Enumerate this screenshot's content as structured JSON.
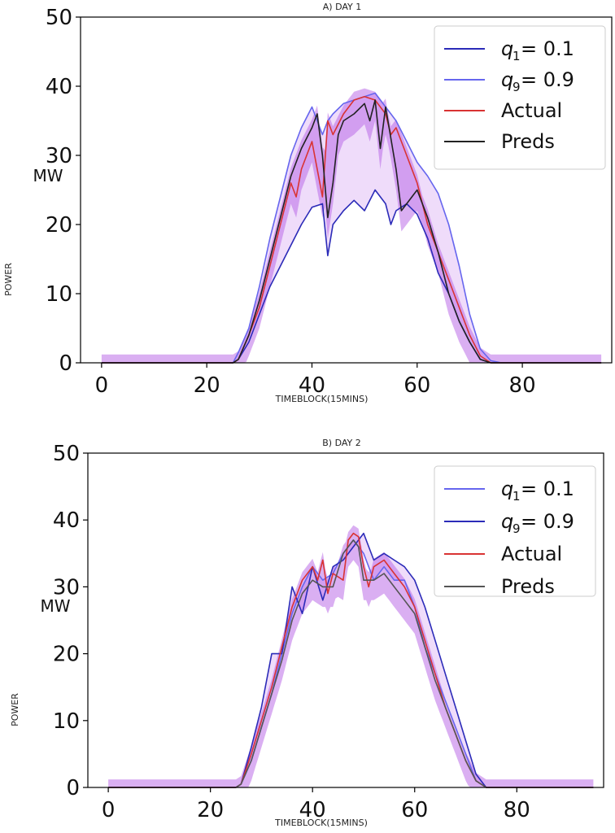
{
  "chart_data": [
    {
      "type": "line",
      "title": "A) DAY 1",
      "xlabel": "TIMEBLOCK(15MINS)",
      "ylabel": "POWER",
      "yunit": "MW",
      "xlim": [
        -4,
        97
      ],
      "ylim": [
        0,
        50
      ],
      "xticks": [
        0,
        20,
        40,
        60,
        80
      ],
      "yticks": [
        0,
        10,
        20,
        30,
        40,
        50
      ],
      "legend_position": "top-right",
      "band": {
        "name": "quantile spread",
        "color": "#b55fe6"
      },
      "series": [
        {
          "name": "q1",
          "label": "q",
          "sub": "1",
          "value_text": " = 0.1",
          "color": "#2b2bb8",
          "x": [
            0,
            24,
            25,
            26,
            28,
            30,
            32,
            34,
            36,
            38,
            40,
            42,
            43,
            44,
            46,
            48,
            50,
            52,
            54,
            55,
            56,
            58,
            60,
            62,
            64,
            66,
            68,
            70,
            72,
            74,
            76,
            80,
            95
          ],
          "values": [
            0,
            0,
            0,
            0.5,
            3,
            7,
            11,
            14,
            17,
            20,
            22.5,
            23,
            15.5,
            20,
            22,
            23.5,
            22,
            25,
            23,
            20,
            22,
            23,
            21.5,
            18,
            13,
            10,
            6,
            3,
            0.5,
            0,
            0,
            0,
            0
          ]
        },
        {
          "name": "q9",
          "label": "q",
          "sub": "9",
          "value_text": " = 0.9",
          "color": "#6666ee",
          "x": [
            0,
            24,
            25,
            26,
            28,
            30,
            32,
            34,
            36,
            38,
            40,
            42,
            43,
            44,
            46,
            48,
            50,
            52,
            54,
            55,
            56,
            58,
            60,
            62,
            64,
            66,
            68,
            70,
            72,
            74,
            76,
            80,
            95
          ],
          "values": [
            0,
            0,
            0,
            1.5,
            5,
            11,
            18,
            24,
            30,
            34,
            37,
            33,
            35,
            36,
            37.5,
            38,
            38.5,
            39,
            37,
            36,
            35,
            32,
            29,
            27,
            24.5,
            20,
            14,
            7,
            2,
            0.3,
            0,
            0,
            0
          ]
        },
        {
          "name": "Actual",
          "label": "Actual",
          "color": "#d93333",
          "x": [
            0,
            24,
            25,
            26,
            28,
            30,
            32,
            34,
            36,
            37,
            38,
            40,
            42,
            43,
            44,
            46,
            48,
            50,
            52,
            54,
            55,
            56,
            58,
            60,
            62,
            64,
            66,
            68,
            70,
            72,
            74,
            76,
            80,
            95
          ],
          "values": [
            0,
            0,
            0,
            0.5,
            4,
            8,
            14,
            20,
            26,
            24,
            28,
            32,
            24,
            35,
            33,
            36,
            38,
            38.5,
            38,
            36,
            33,
            34,
            30,
            26,
            20,
            16,
            12,
            8,
            4,
            1,
            0,
            0,
            0,
            0
          ]
        },
        {
          "name": "Preds",
          "label": "Preds",
          "color": "#222222",
          "x": [
            0,
            24,
            25,
            26,
            28,
            30,
            32,
            34,
            36,
            38,
            40,
            41,
            42,
            43,
            44,
            45,
            46,
            48,
            50,
            51,
            52,
            53,
            54,
            56,
            57,
            58,
            60,
            62,
            64,
            66,
            68,
            70,
            72,
            74,
            76,
            80,
            95
          ],
          "values": [
            0,
            0,
            0,
            0.5,
            4,
            9,
            15,
            21,
            27,
            31,
            34,
            36,
            30,
            21,
            26,
            33,
            35,
            36,
            37.5,
            35,
            38,
            31,
            37,
            28,
            22,
            23,
            25,
            21,
            16,
            10,
            6,
            3,
            0.5,
            0,
            0,
            0,
            0
          ]
        }
      ]
    },
    {
      "type": "line",
      "title": "B) DAY 2",
      "xlabel": "TIMEBLOCK(15MINS)",
      "ylabel": "POWER",
      "yunit": "MW",
      "xlim": [
        -4,
        97
      ],
      "ylim": [
        0,
        50
      ],
      "xticks": [
        0,
        20,
        40,
        60,
        80
      ],
      "yticks": [
        0,
        10,
        20,
        30,
        40,
        50
      ],
      "legend_position": "top-right",
      "band": {
        "name": "quantile spread",
        "color": "#b55fe6"
      },
      "series": [
        {
          "name": "q1",
          "label": "q",
          "sub": "1",
          "value_text": " = 0.1",
          "color": "#6666ee",
          "x": [
            0,
            25,
            26,
            28,
            30,
            32,
            34,
            36,
            38,
            40,
            42,
            44,
            46,
            48,
            50,
            52,
            54,
            56,
            58,
            60,
            62,
            64,
            66,
            68,
            70,
            72,
            74,
            80,
            95
          ],
          "values": [
            0,
            0,
            0.5,
            4,
            9,
            14,
            20,
            26,
            30,
            33,
            31,
            32,
            35,
            37,
            35,
            31,
            33,
            31,
            31,
            27,
            21,
            17,
            13,
            9,
            5,
            1,
            0,
            0,
            0
          ]
        },
        {
          "name": "q9",
          "label": "q",
          "sub": "9",
          "value_text": " = 0.9",
          "color": "#2b2bb8",
          "x": [
            0,
            25,
            26,
            28,
            30,
            32,
            34,
            36,
            38,
            40,
            42,
            44,
            46,
            48,
            50,
            52,
            54,
            56,
            58,
            60,
            62,
            64,
            66,
            68,
            70,
            72,
            74,
            80,
            95
          ],
          "values": [
            0,
            0,
            0.5,
            6,
            12,
            20,
            20,
            30,
            26,
            33,
            28,
            33,
            34,
            36,
            38,
            34,
            35,
            34,
            33,
            31,
            27,
            22,
            17,
            12,
            7,
            2,
            0,
            0,
            0
          ]
        },
        {
          "name": "Actual",
          "label": "Actual",
          "color": "#d93333",
          "x": [
            0,
            25,
            26,
            28,
            30,
            32,
            34,
            36,
            38,
            40,
            41,
            42,
            43,
            44,
            46,
            47,
            48,
            49,
            50,
            51,
            52,
            54,
            56,
            58,
            60,
            62,
            64,
            66,
            68,
            70,
            72,
            74,
            80,
            95
          ],
          "values": [
            0,
            0,
            0.5,
            5,
            10,
            15,
            21,
            27,
            31,
            33,
            31,
            34,
            29,
            32,
            31,
            37,
            38,
            37.5,
            33,
            30,
            33,
            34,
            32,
            30,
            27,
            22,
            17,
            12,
            8,
            4,
            1,
            0,
            0,
            0
          ]
        },
        {
          "name": "Preds",
          "label": "Preds",
          "color": "#555555",
          "x": [
            0,
            25,
            26,
            28,
            30,
            32,
            34,
            36,
            38,
            40,
            42,
            44,
            46,
            47,
            48,
            49,
            50,
            52,
            54,
            56,
            58,
            60,
            62,
            64,
            66,
            68,
            70,
            72,
            74,
            80,
            95
          ],
          "values": [
            0,
            0,
            0.5,
            4,
            9,
            14,
            19,
            25,
            29,
            31,
            30,
            30,
            35,
            36,
            37,
            36,
            31,
            31,
            32,
            30,
            28,
            26,
            21,
            16,
            12,
            8,
            4,
            1,
            0,
            0,
            0
          ]
        }
      ]
    }
  ]
}
